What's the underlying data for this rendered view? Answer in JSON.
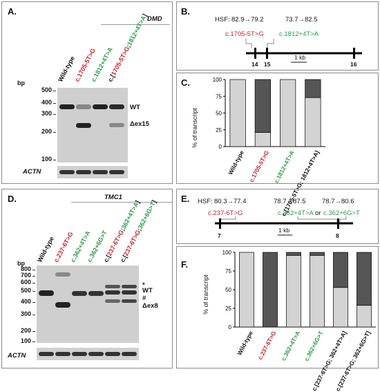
{
  "panelA": {
    "label": "A.",
    "gene": "DMD",
    "lanes": [
      {
        "parts": [
          {
            "t": "Wild-type",
            "c": "blk"
          }
        ]
      },
      {
        "parts": [
          {
            "t": "c.1705-5T>G",
            "c": "red"
          }
        ]
      },
      {
        "parts": [
          {
            "t": "c.1812+4T>A",
            "c": "grn"
          }
        ]
      },
      {
        "parts": [
          {
            "t": "c.[",
            "c": "blk"
          },
          {
            "t": "1705-5T>G",
            "c": "red"
          },
          {
            "t": ";",
            "c": "blk"
          },
          {
            "t": "1812+4T>A",
            "c": "grn"
          },
          {
            "t": "]",
            "c": "blk"
          }
        ]
      }
    ],
    "bp_title": "bp",
    "markers": [
      "500",
      "400",
      "300",
      "200",
      "100"
    ],
    "band_labels": [
      "WT",
      "Δex15"
    ],
    "loading": "ACTN"
  },
  "panelB": {
    "label": "B.",
    "hsf_prefix": "HSF:",
    "hsf1": "82.9→79.2",
    "hsf2": "73.7→82.5",
    "var_red": "c.1705-5T>G",
    "var_green": "c.1812+4T>A",
    "exons": [
      "14",
      "15",
      "16"
    ],
    "scale": "1 kb"
  },
  "panelC": {
    "label": "C.",
    "ylabel": "% of transcript",
    "yticks": [
      "0",
      "25",
      "50",
      "75",
      "100"
    ]
  },
  "panelD": {
    "label": "D.",
    "gene": "TMC1",
    "lanes": [
      {
        "parts": [
          {
            "t": "Wild-type",
            "c": "blk"
          }
        ]
      },
      {
        "parts": [
          {
            "t": "c.237-6T>G",
            "c": "red"
          }
        ]
      },
      {
        "parts": [
          {
            "t": "c.362+4T>A",
            "c": "grn"
          }
        ]
      },
      {
        "parts": [
          {
            "t": "c.362+6G>T",
            "c": "grn"
          }
        ]
      },
      {
        "parts": [
          {
            "t": "c.[",
            "c": "blk"
          },
          {
            "t": "237-6T>G",
            "c": "red"
          },
          {
            "t": ";",
            "c": "blk"
          },
          {
            "t": "362+4T>A",
            "c": "grn"
          },
          {
            "t": "]",
            "c": "blk"
          }
        ]
      },
      {
        "parts": [
          {
            "t": "c.[",
            "c": "blk"
          },
          {
            "t": "237-6T>G",
            "c": "red"
          },
          {
            "t": ";",
            "c": "blk"
          },
          {
            "t": "362+6G>T",
            "c": "grn"
          },
          {
            "t": "]",
            "c": "blk"
          }
        ]
      }
    ],
    "bp_title": "bp",
    "markers": [
      "800",
      "700",
      "600",
      "500",
      "400",
      "300",
      "200",
      "100"
    ],
    "band_labels": [
      "*",
      "WT",
      "#",
      "Δex8"
    ],
    "loading": "ACTN"
  },
  "panelE": {
    "label": "E.",
    "hsf_prefix": "HSF:",
    "hsf1": "80.3→77.4",
    "hsf2": "78.7→87.5",
    "hsf3": "78.7→80.6",
    "var_red": "c.237-6T>G",
    "var_green1": "c.362+4T>A",
    "or_word": "or",
    "var_green2": "c.362+6G>T",
    "exons": [
      "7",
      "8"
    ],
    "scale": "1 kb"
  },
  "panelF": {
    "label": "F.",
    "ylabel": "% of transcript",
    "yticks": [
      "0",
      "25",
      "50",
      "75",
      "100"
    ]
  },
  "colors": {
    "normal": "#d3d3d3",
    "aberrant": "#555555",
    "red": "#c0282d",
    "green": "#2e9a48"
  },
  "chart_data": [
    {
      "type": "bar",
      "stacked": true,
      "ylabel": "% of transcript",
      "ylim": [
        0,
        100
      ],
      "categories": [
        "Wild-type",
        "c.1705-5T>G",
        "c.1812+4T>A",
        "c.[1705-5T>G; 1812+4T>A]"
      ],
      "series": [
        {
          "values": [
            100,
            21,
            100,
            73
          ]
        },
        {
          "values": [
            0,
            79,
            0,
            27
          ]
        }
      ]
    },
    {
      "type": "bar",
      "stacked": true,
      "ylabel": "% of transcript",
      "ylim": [
        0,
        100
      ],
      "categories": [
        "Wild-type",
        "c.237-6T>G",
        "c.362+4T>A",
        "c.362+6G>T",
        "c.[237-6T>G; 362+4T>A]",
        "c.[237-6T>G; 362+6G>T]"
      ],
      "series": [
        {
          "values": [
            100,
            0,
            96,
            96,
            53,
            29
          ]
        },
        {
          "values": [
            0,
            100,
            4,
            4,
            47,
            71
          ]
        }
      ]
    }
  ]
}
